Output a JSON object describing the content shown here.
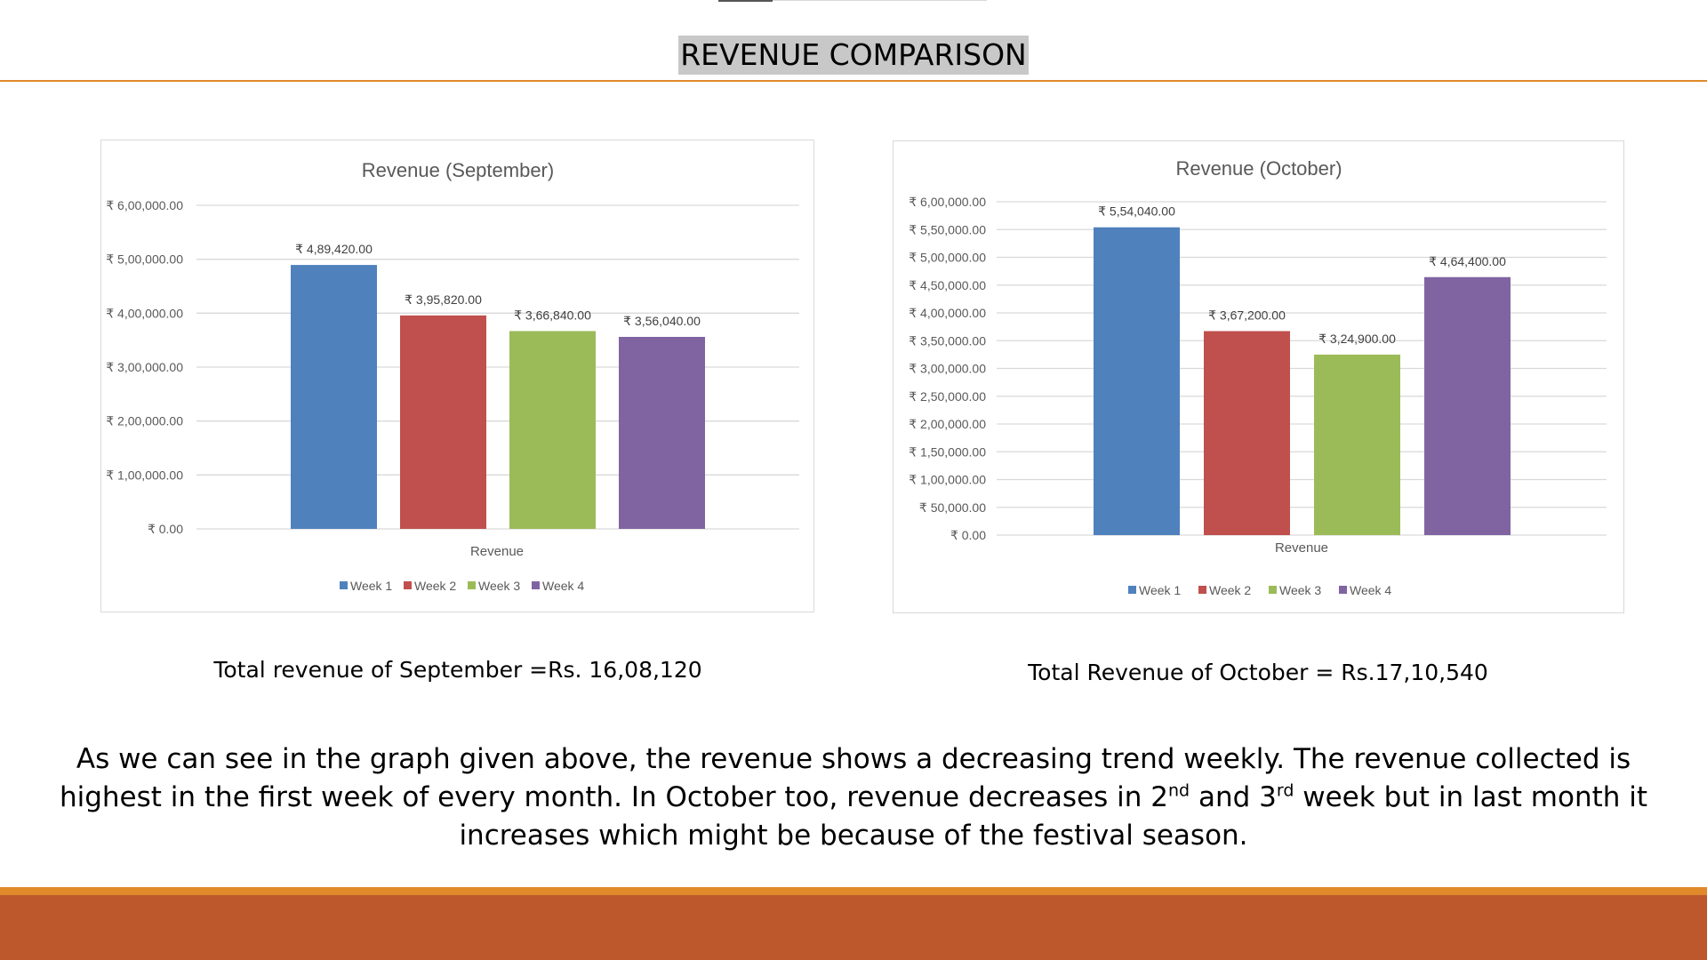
{
  "slide": {
    "title": "REVENUE COMPARISON",
    "summary": {
      "part1": "As we can see in the graph given above, the revenue shows a decreasing trend weekly. The revenue collected is highest in the first week of every month. In October too, revenue decreases in 2",
      "sup1": "nd",
      "part2": " and 3",
      "sup2": "rd",
      "part3": " week but in last month it increases which might be because of the festival season."
    },
    "total_september": "Total revenue of September =Rs. 16,08,120",
    "total_october": "Total Revenue of October = Rs.17,10,540",
    "colors": {
      "accent_orange": "#e08a2c",
      "band_rust": "#bc582c"
    }
  },
  "chart_data": [
    {
      "type": "bar",
      "title": "Revenue (September)",
      "xlabel": "Revenue",
      "categories": [
        "Revenue"
      ],
      "series": [
        {
          "name": "Week 1",
          "values": [
            489420
          ],
          "label": "₹ 4,89,420.00",
          "color": "#4f81bd"
        },
        {
          "name": "Week 2",
          "values": [
            395820
          ],
          "label": "₹ 3,95,820.00",
          "color": "#c0504d"
        },
        {
          "name": "Week 3",
          "values": [
            366840
          ],
          "label": "₹ 3,66,840.00",
          "color": "#9bbb59"
        },
        {
          "name": "Week 4",
          "values": [
            356040
          ],
          "label": "₹ 3,56,040.00",
          "color": "#8064a2"
        }
      ],
      "ylim": [
        0,
        600000
      ],
      "yticks": [
        0,
        100000,
        200000,
        300000,
        400000,
        500000,
        600000
      ],
      "ytick_labels": [
        "₹ 0.00",
        "₹ 1,00,000.00",
        "₹ 2,00,000.00",
        "₹ 3,00,000.00",
        "₹ 4,00,000.00",
        "₹ 5,00,000.00",
        "₹ 6,00,000.00"
      ],
      "grid": true,
      "legend": "bottom"
    },
    {
      "type": "bar",
      "title": "Revenue (October)",
      "xlabel": "Revenue",
      "categories": [
        "Revenue"
      ],
      "series": [
        {
          "name": "Week 1",
          "values": [
            554040
          ],
          "label": "₹ 5,54,040.00",
          "color": "#4f81bd"
        },
        {
          "name": "Week 2",
          "values": [
            367200
          ],
          "label": "₹ 3,67,200.00",
          "color": "#c0504d"
        },
        {
          "name": "Week 3",
          "values": [
            324900
          ],
          "label": "₹ 3,24,900.00",
          "color": "#9bbb59"
        },
        {
          "name": "Week 4",
          "values": [
            464400
          ],
          "label": "₹ 4,64,400.00",
          "color": "#8064a2"
        }
      ],
      "ylim": [
        0,
        600000
      ],
      "yticks": [
        0,
        50000,
        100000,
        150000,
        200000,
        250000,
        300000,
        350000,
        400000,
        450000,
        500000,
        550000,
        600000
      ],
      "ytick_labels": [
        "₹ 0.00",
        "₹ 50,000.00",
        "₹ 1,00,000.00",
        "₹ 1,50,000.00",
        "₹ 2,00,000.00",
        "₹ 2,50,000.00",
        "₹ 3,00,000.00",
        "₹ 3,50,000.00",
        "₹ 4,00,000.00",
        "₹ 4,50,000.00",
        "₹ 5,00,000.00",
        "₹ 5,50,000.00",
        "₹ 6,00,000.00"
      ],
      "grid": true,
      "legend": "bottom"
    }
  ]
}
